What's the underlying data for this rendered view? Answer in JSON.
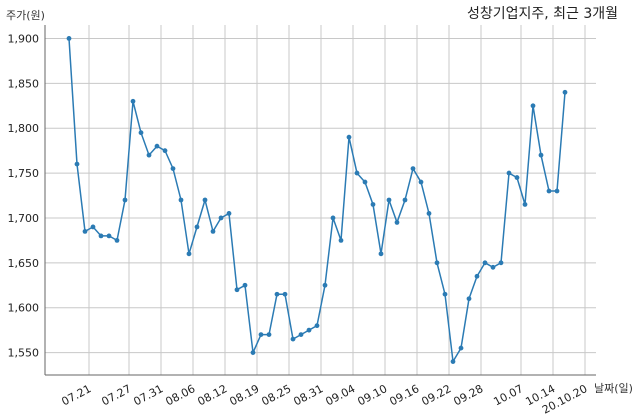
{
  "chart_data": {
    "type": "line",
    "title": "성창기업지주, 최근 3개월",
    "ylabel": "주가(원)",
    "xlabel": "날짜(일)",
    "ylim": [
      1525,
      1915
    ],
    "yticks": [
      1550,
      1600,
      1650,
      1700,
      1750,
      1800,
      1850,
      1900
    ],
    "ytick_labels": [
      "1,550",
      "1,600",
      "1,650",
      "1,700",
      "1,750",
      "1,800",
      "1,850",
      "1,900"
    ],
    "xtick_positions": [
      2.5,
      7.5,
      11.5,
      15.5,
      19.5,
      23.5,
      27.5,
      31.5,
      35.5,
      39.5,
      43.5,
      47.5,
      51.5,
      56.5,
      60.5,
      64.5
    ],
    "xtick_labels": [
      "07.21",
      "07.27",
      "07.31",
      "08.06",
      "08.12",
      "08.19",
      "08.25",
      "08.31",
      "09.04",
      "09.10",
      "09.16",
      "09.22",
      "09.28",
      "10.07",
      "10.14",
      "20.10.20"
    ],
    "grid": true,
    "series": [
      {
        "color": "#2b7bb4",
        "values": [
          1900,
          1760,
          1685,
          1690,
          1680,
          1680,
          1675,
          1720,
          1830,
          1795,
          1770,
          1780,
          1775,
          1755,
          1720,
          1660,
          1690,
          1720,
          1685,
          1700,
          1705,
          1620,
          1625,
          1550,
          1570,
          1570,
          1615,
          1615,
          1565,
          1570,
          1575,
          1580,
          1625,
          1700,
          1675,
          1790,
          1750,
          1740,
          1715,
          1660,
          1720,
          1695,
          1720,
          1755,
          1740,
          1705,
          1650,
          1615,
          1540,
          1555,
          1610,
          1635,
          1650,
          1645,
          1650,
          1750,
          1745,
          1715,
          1825,
          1770,
          1730,
          1730,
          1840
        ]
      }
    ]
  }
}
